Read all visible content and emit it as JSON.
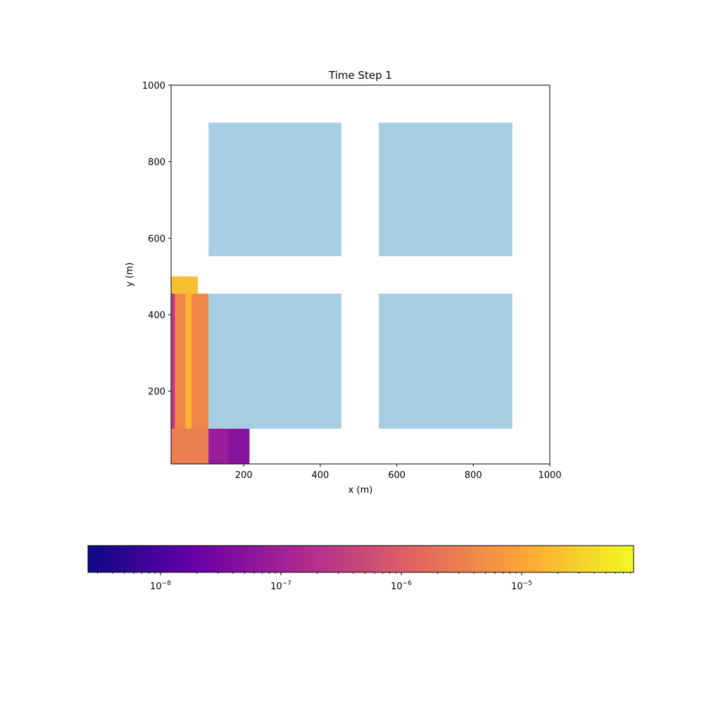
{
  "chart_data": {
    "type": "heatmap",
    "title": "Time Step 1",
    "xlabel": "x (m)",
    "ylabel": "y (m)",
    "xlim": [
      10,
      1000
    ],
    "ylim": [
      10,
      1000
    ],
    "x_ticks": [
      200,
      400,
      600,
      800,
      1000
    ],
    "y_ticks": [
      200,
      400,
      600,
      800,
      1000
    ],
    "x_tick_labels": [
      "200",
      "400",
      "600",
      "800",
      "1000"
    ],
    "y_tick_labels": [
      "200",
      "400",
      "600",
      "800",
      "1000"
    ],
    "grid": false,
    "colormap": "plasma",
    "color_scale": "log",
    "colorbar": {
      "orientation": "horizontal",
      "vmin": 2.5e-09,
      "vmax": 8.5e-05,
      "major_ticks": [
        1e-08,
        1e-07,
        1e-06,
        1e-05
      ],
      "tick_labels": [
        {
          "base": "10",
          "exp": "−8"
        },
        {
          "base": "10",
          "exp": "−7"
        },
        {
          "base": "10",
          "exp": "−6"
        },
        {
          "base": "10",
          "exp": "−5"
        }
      ],
      "colors": [
        "#0d0887",
        "#6a00a8",
        "#b12a90",
        "#e16462",
        "#fca636",
        "#f0f921"
      ]
    },
    "buildings": {
      "color": "#a6cee3",
      "rects": [
        {
          "x0": 108,
          "x1": 455,
          "y0": 553,
          "y1": 902
        },
        {
          "x0": 553,
          "x1": 902,
          "y0": 553,
          "y1": 902
        },
        {
          "x0": 108,
          "x1": 455,
          "y0": 102,
          "y1": 455
        },
        {
          "x0": 553,
          "x1": 902,
          "y0": 102,
          "y1": 455
        }
      ]
    },
    "concentration_regions": [
      {
        "x0": 10,
        "x1": 108,
        "y0": 10,
        "y1": 102,
        "level": 3e-06
      },
      {
        "x0": 10,
        "x1": 108,
        "y0": 102,
        "y1": 455,
        "level": 4e-06
      },
      {
        "x0": 48,
        "x1": 64,
        "y0": 102,
        "y1": 500,
        "level": 1.5e-05
      },
      {
        "x0": 10,
        "x1": 80,
        "y0": 455,
        "y1": 500,
        "level": 2e-05
      },
      {
        "x0": 10,
        "x1": 20,
        "y0": 102,
        "y1": 455,
        "level": 3e-07
      },
      {
        "x0": 108,
        "x1": 215,
        "y0": 10,
        "y1": 102,
        "level": 5e-08
      },
      {
        "x0": 108,
        "x1": 160,
        "y0": 10,
        "y1": 102,
        "level": 8e-08
      }
    ]
  }
}
